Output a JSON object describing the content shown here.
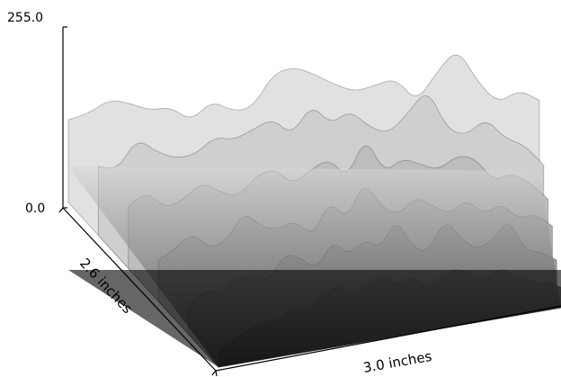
{
  "chart_data": {
    "type": "surface",
    "z_axis": {
      "range": [
        0.0,
        255.0
      ],
      "tick_labels": [
        "255.0",
        "0.0"
      ]
    },
    "axes": {
      "depth_label": "2.6 inches",
      "width_label": "3.0 inches"
    },
    "colors": {
      "background": "#ffffff",
      "axis": "#000000",
      "surface_dark": "#000000",
      "surface_light": "#e8e8e8"
    },
    "surface_grid": {
      "rows": 6,
      "cols": 24,
      "row_profiles": [
        [
          120,
          130,
          150,
          145,
          135,
          140,
          120,
          150,
          135,
          140,
          190,
          200,
          190,
          175,
          165,
          175,
          185,
          150,
          195,
          230,
          180,
          150,
          170,
          155
        ],
        [
          100,
          95,
          140,
          120,
          110,
          115,
          140,
          135,
          150,
          165,
          140,
          185,
          155,
          175,
          150,
          140,
          170,
          205,
          145,
          135,
          160,
          130,
          120,
          90
        ],
        [
          90,
          110,
          85,
          95,
          120,
          105,
          95,
          125,
          135,
          110,
          130,
          145,
          115,
          175,
          120,
          140,
          130,
          120,
          140,
          135,
          100,
          110,
          95,
          70
        ],
        [
          60,
          75,
          95,
          70,
          80,
          120,
          95,
          90,
          100,
          75,
          125,
          95,
          150,
          110,
          95,
          120,
          105,
          90,
          110,
          85,
          100,
          75,
          80,
          60
        ],
        [
          40,
          60,
          55,
          70,
          75,
          60,
          100,
          90,
          70,
          110,
          85,
          105,
          90,
          130,
          85,
          75,
          120,
          90,
          70,
          80,
          110,
          60,
          55,
          40
        ],
        [
          20,
          35,
          45,
          55,
          50,
          70,
          60,
          75,
          90,
          70,
          80,
          95,
          70,
          85,
          60,
          75,
          85,
          70,
          60,
          75,
          55,
          45,
          40,
          30
        ]
      ]
    }
  }
}
